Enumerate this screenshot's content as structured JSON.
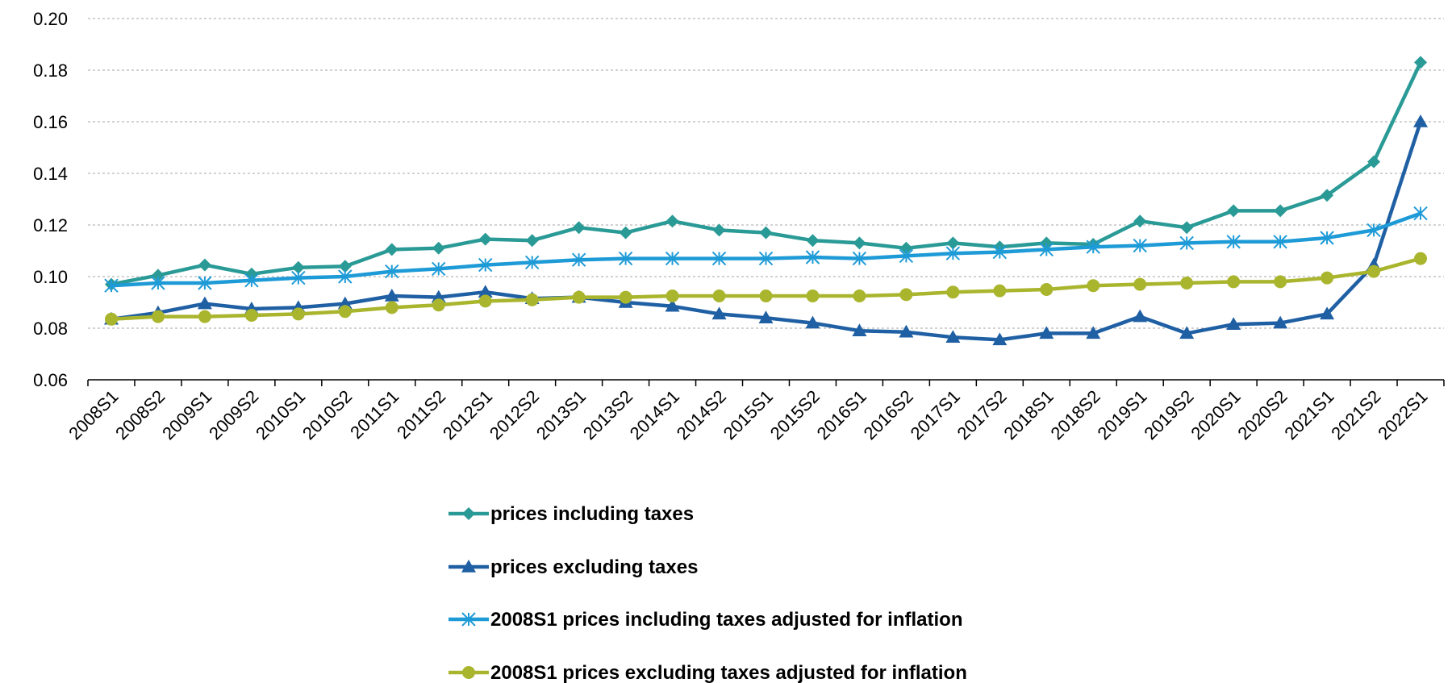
{
  "chart_data": {
    "type": "line",
    "title": "",
    "xlabel": "",
    "ylabel": "",
    "ylim": [
      0.06,
      0.2
    ],
    "y_ticks": [
      "0.06",
      "0.08",
      "0.10",
      "0.12",
      "0.14",
      "0.16",
      "0.18",
      "0.20"
    ],
    "grid": "horizontal dashed",
    "legend_position": "bottom",
    "categories": [
      "2008S1",
      "2008S2",
      "2009S1",
      "2009S2",
      "2010S1",
      "2010S2",
      "2011S1",
      "2011S2",
      "2012S1",
      "2012S2",
      "2013S1",
      "2013S2",
      "2014S1",
      "2014S2",
      "2015S1",
      "2015S2",
      "2016S1",
      "2016S2",
      "2017S1",
      "2017S2",
      "2018S1",
      "2018S2",
      "2019S1",
      "2019S2",
      "2020S1",
      "2020S2",
      "2021S1",
      "2021S2",
      "2022S1"
    ],
    "series": [
      {
        "name": "prices including taxes",
        "color": "#2a9a96",
        "marker": "diamond",
        "values": [
          0.097,
          0.1005,
          0.1045,
          0.101,
          0.1035,
          0.104,
          0.1105,
          0.111,
          0.1145,
          0.114,
          0.119,
          0.117,
          0.1215,
          0.118,
          0.117,
          0.114,
          0.113,
          0.111,
          0.113,
          0.1115,
          0.113,
          0.1125,
          0.1215,
          0.119,
          0.1255,
          0.1255,
          0.1315,
          0.1445,
          0.183
        ]
      },
      {
        "name": "prices excluding taxes",
        "color": "#1f5fa3",
        "marker": "triangle",
        "values": [
          0.0835,
          0.086,
          0.0895,
          0.0875,
          0.088,
          0.0895,
          0.0925,
          0.092,
          0.094,
          0.0915,
          0.092,
          0.09,
          0.0885,
          0.0855,
          0.084,
          0.082,
          0.079,
          0.0785,
          0.0765,
          0.0755,
          0.078,
          0.078,
          0.0845,
          0.078,
          0.0815,
          0.082,
          0.0855,
          0.1045,
          0.16
        ]
      },
      {
        "name": "2008S1 prices including taxes adjusted for inflation",
        "color": "#1e9bd7",
        "marker": "asterisk",
        "values": [
          0.0965,
          0.0975,
          0.0975,
          0.0985,
          0.0995,
          0.1,
          0.102,
          0.103,
          0.1045,
          0.1055,
          0.1065,
          0.107,
          0.107,
          0.107,
          0.107,
          0.1075,
          0.107,
          0.108,
          0.109,
          0.1095,
          0.1105,
          0.1115,
          0.112,
          0.113,
          0.1135,
          0.1135,
          0.115,
          0.118,
          0.1245
        ]
      },
      {
        "name": "2008S1 prices excluding taxes adjusted for inflation",
        "color": "#aab52e",
        "marker": "circle",
        "values": [
          0.0835,
          0.0845,
          0.0845,
          0.085,
          0.0855,
          0.0865,
          0.088,
          0.089,
          0.0905,
          0.091,
          0.092,
          0.092,
          0.0925,
          0.0925,
          0.0925,
          0.0925,
          0.0925,
          0.093,
          0.094,
          0.0945,
          0.095,
          0.0965,
          0.097,
          0.0975,
          0.098,
          0.098,
          0.0995,
          0.102,
          0.107
        ]
      }
    ]
  }
}
